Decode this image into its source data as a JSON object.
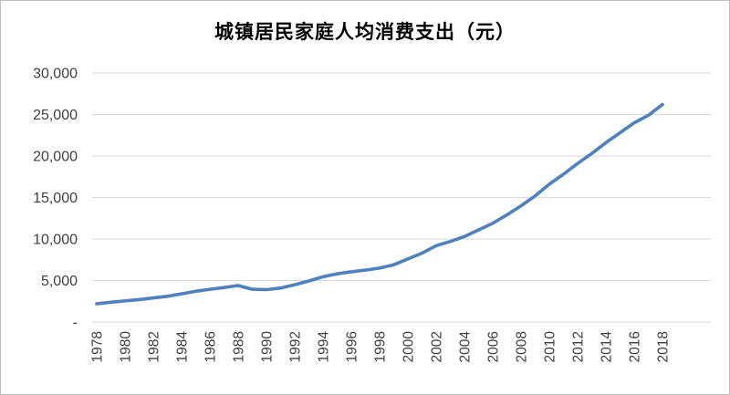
{
  "window": {
    "background": "#ffffff",
    "border_color": "#bdbdbd"
  },
  "chart_data": {
    "type": "line",
    "title": "城镇居民家庭人均消费支出（元）",
    "xlabel": "",
    "ylabel": "",
    "years": [
      1978,
      1979,
      1980,
      1981,
      1982,
      1983,
      1984,
      1985,
      1986,
      1987,
      1988,
      1989,
      1990,
      1991,
      1992,
      1993,
      1994,
      1995,
      1996,
      1997,
      1998,
      1999,
      2000,
      2001,
      2002,
      2003,
      2004,
      2005,
      2006,
      2007,
      2008,
      2009,
      2010,
      2011,
      2012,
      2013,
      2014,
      2015,
      2016,
      2017,
      2018
    ],
    "values": [
      2200,
      2380,
      2550,
      2700,
      2900,
      3100,
      3400,
      3700,
      3950,
      4150,
      4400,
      3950,
      3900,
      4100,
      4500,
      4950,
      5450,
      5800,
      6050,
      6250,
      6500,
      6900,
      7600,
      8300,
      9200,
      9700,
      10300,
      11100,
      11900,
      12900,
      14000,
      15200,
      16600,
      17800,
      19100,
      20300,
      21600,
      22800,
      24000,
      24900,
      26200
    ],
    "xtick_labels": [
      "1978",
      "1980",
      "1982",
      "1984",
      "1986",
      "1988",
      "1990",
      "1992",
      "1994",
      "1996",
      "1998",
      "2000",
      "2002",
      "2004",
      "2006",
      "2008",
      "2010",
      "2012",
      "2014",
      "2016",
      "2018"
    ],
    "ytick_labels": [
      "-",
      "5,000",
      "10,000",
      "15,000",
      "20,000",
      "25,000",
      "30,000"
    ],
    "ylim": [
      0,
      30000
    ],
    "ytick_step": 5000,
    "x_label_rotation": -90,
    "grid": "horizontal",
    "legend": "none",
    "line_color": "#4e81bd",
    "gridline_color": "#d9d9d9",
    "tick_label_color": "#404040"
  }
}
